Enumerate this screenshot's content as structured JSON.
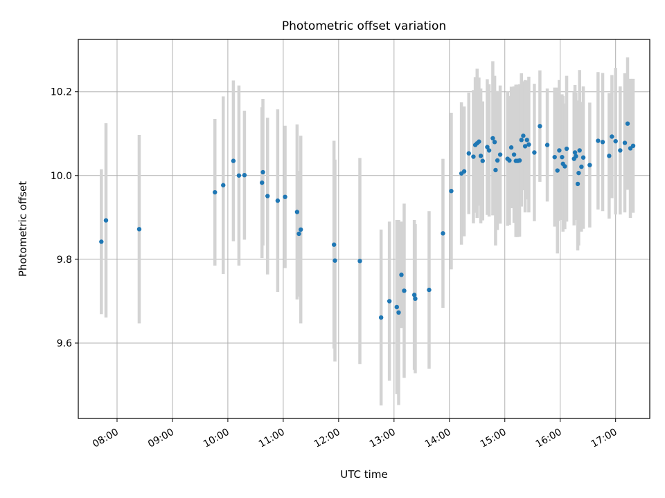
{
  "chart_data": {
    "type": "scatter",
    "title": "Photometric offset variation",
    "xlabel": "UTC time",
    "ylabel": "Photometric offset",
    "xlim": [
      "07:18",
      "17:37"
    ],
    "ylim": [
      9.42,
      10.325
    ],
    "xticks": [
      "08:00",
      "09:00",
      "10:00",
      "11:00",
      "12:00",
      "13:00",
      "14:00",
      "15:00",
      "16:00",
      "17:00"
    ],
    "yticks": [
      9.6,
      9.8,
      10.0,
      10.2
    ],
    "ytick_labels": [
      "9.6",
      "9.8",
      "10.0",
      "10.2"
    ],
    "grid": true,
    "colors": {
      "points": "#1f77b4",
      "errorbars": "#d3d3d3",
      "grid": "#b0b0b0"
    },
    "series": [
      {
        "x": [
          "07:43",
          "07:48",
          "08:24",
          "09:46",
          "09:55",
          "10:06",
          "10:12",
          "10:18",
          "10:37",
          "10:38",
          "10:43",
          "10:54",
          "11:02",
          "11:15",
          "11:17",
          "11:19",
          "11:55",
          "11:56",
          "12:23",
          "12:46",
          "12:55",
          "13:03",
          "13:05",
          "13:08",
          "13:11",
          "13:22",
          "13:23",
          "13:38",
          "13:53",
          "14:02",
          "14:13",
          "14:16",
          "14:21",
          "14:26",
          "14:28",
          "14:30",
          "14:32",
          "14:34",
          "14:36",
          "14:41",
          "14:43",
          "14:47",
          "14:49",
          "14:50",
          "14:52",
          "14:55",
          "15:03",
          "15:05",
          "15:07",
          "15:10",
          "15:12",
          "15:14",
          "15:16",
          "15:18",
          "15:20",
          "15:22",
          "15:24",
          "15:26",
          "15:32",
          "15:38",
          "15:46",
          "15:54",
          "15:57",
          "15:59",
          "16:02",
          "16:03",
          "16:05",
          "16:07",
          "16:15",
          "16:16",
          "16:17",
          "16:19",
          "16:20",
          "16:21",
          "16:23",
          "16:25",
          "16:32",
          "16:41",
          "16:46",
          "16:53",
          "16:56",
          "17:00",
          "17:05"
        ],
        "y": [
          9.842,
          9.893,
          9.872,
          9.96,
          9.977,
          10.035,
          10.0,
          10.001,
          9.983,
          10.008,
          9.951,
          9.94,
          9.949,
          9.913,
          9.861,
          9.871,
          9.835,
          9.797,
          9.796,
          9.661,
          9.7,
          9.686,
          9.673,
          9.763,
          9.725,
          9.715,
          9.706,
          9.727,
          9.862,
          9.963,
          10.005,
          10.01,
          10.053,
          10.045,
          10.073,
          10.077,
          10.081,
          10.047,
          10.035,
          10.068,
          10.06,
          10.089,
          10.08,
          10.013,
          10.036,
          10.05,
          10.04,
          10.036,
          10.067,
          10.05,
          10.035,
          10.035,
          10.036,
          10.085,
          10.095,
          10.07,
          10.085,
          10.074,
          10.055,
          10.118,
          10.073,
          10.044,
          10.012,
          10.06,
          10.044,
          10.028,
          10.022,
          10.064,
          10.04,
          10.055,
          10.046,
          9.98,
          10.006,
          10.06,
          10.021,
          10.043,
          10.025,
          10.083,
          10.08,
          10.047,
          10.093,
          10.082,
          10.06
        ],
        "y_err": [
          0.173,
          0.232,
          0.225,
          0.175,
          0.212,
          0.192,
          0.215,
          0.154,
          0.18,
          0.175,
          0.187,
          0.218,
          0.17,
          0.209,
          0.15,
          0.224,
          0.248,
          0.241,
          0.246,
          0.21,
          0.19,
          0.208,
          0.221,
          0.127,
          0.208,
          0.179,
          0.178,
          0.188,
          0.178,
          0.187,
          0.17,
          0.155,
          0.145,
          0.159,
          0.162,
          0.178,
          0.153,
          0.161,
          0.142,
          0.162,
          0.158,
          0.184,
          0.158,
          0.18,
          0.166,
          0.165,
          0.16,
          0.154,
          0.145,
          0.163,
          0.182,
          0.182,
          0.182,
          0.159,
          0.13,
          0.158,
          0.142,
          0.162,
          0.164,
          0.133,
          0.135,
          0.166,
          0.198,
          0.168,
          0.15,
          0.162,
          0.15,
          0.174,
          0.159,
          0.161,
          0.152,
          0.159,
          0.173,
          0.192,
          0.155,
          0.17,
          0.149,
          0.164,
          0.165,
          0.15,
          0.147,
          0.175,
          0.153
        ]
      },
      {
        "x": [
          "17:10",
          "17:13",
          "17:16",
          "17:19"
        ],
        "y": [
          10.078,
          10.124,
          10.065,
          10.071
        ],
        "y_err": [
          0.166,
          0.158,
          0.166,
          0.16
        ]
      }
    ]
  }
}
